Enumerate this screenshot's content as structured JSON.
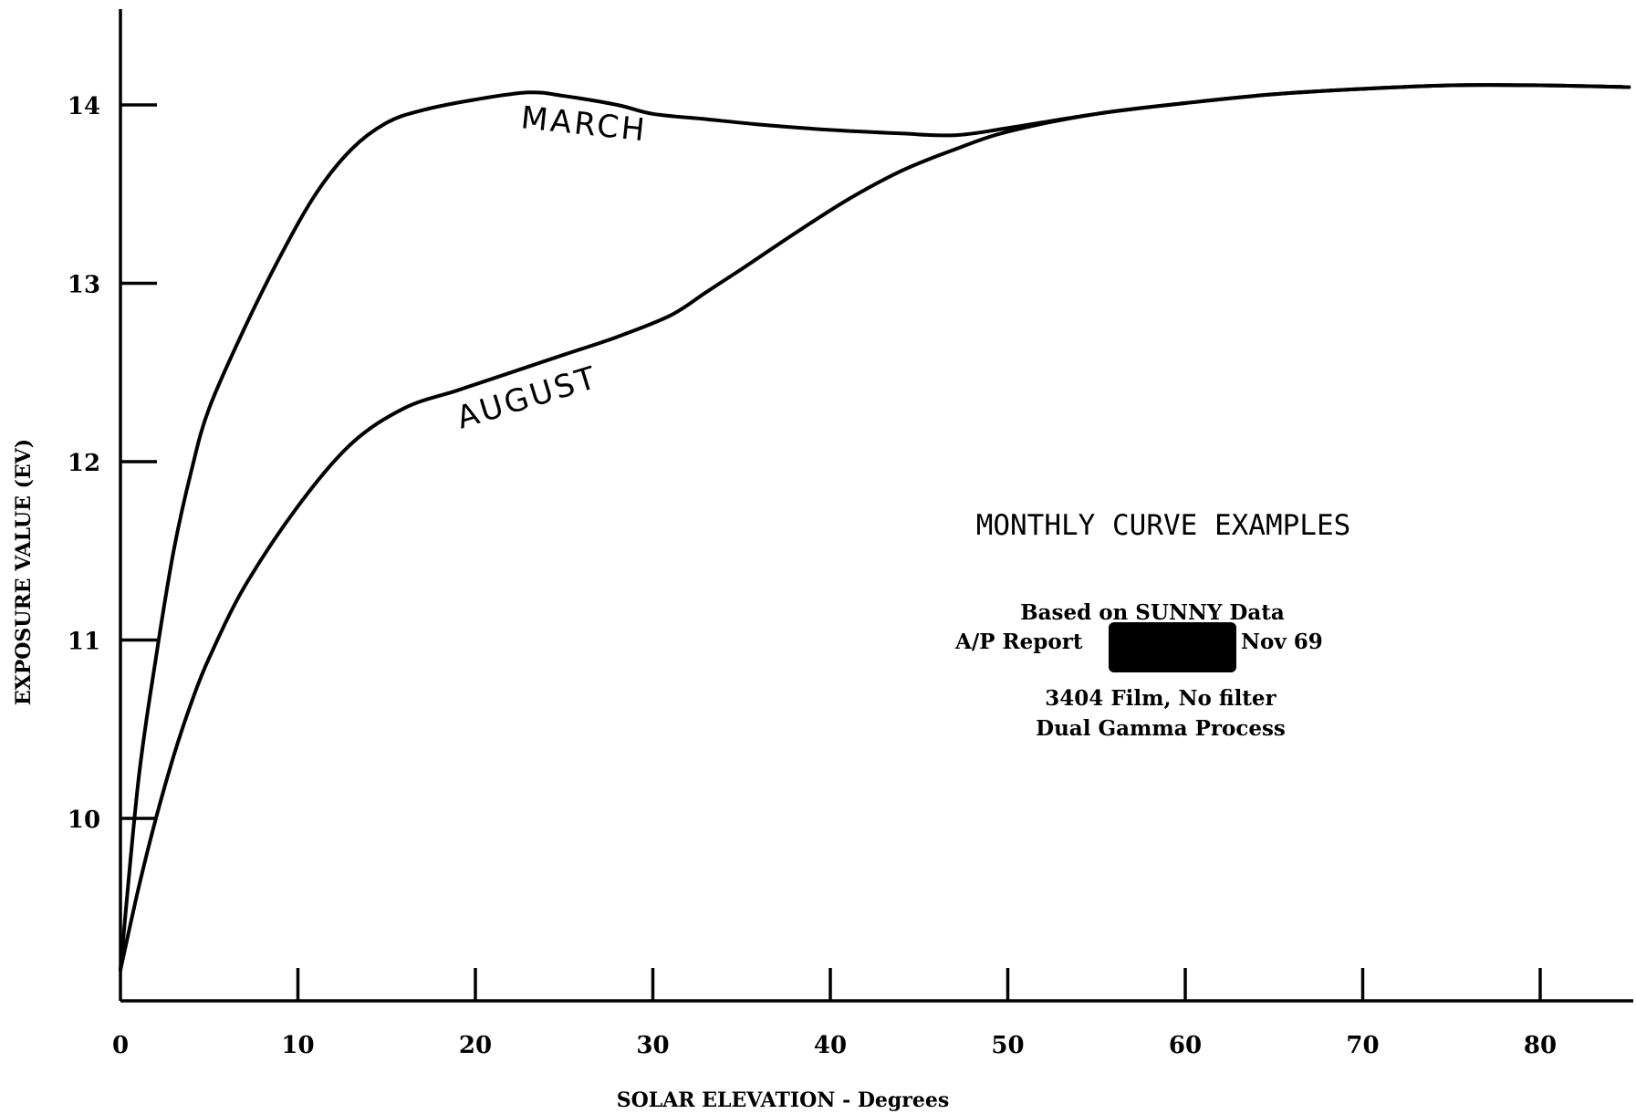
{
  "chart_data": {
    "type": "line",
    "title": "MONTHLY CURVE EXAMPLES",
    "xlabel": "SOLAR ELEVATION - Degrees",
    "ylabel": "EXPOSURE VALUE (EV)",
    "xlim": [
      0,
      85
    ],
    "ylim": [
      9,
      14.5
    ],
    "x_ticks": [
      0,
      10,
      20,
      30,
      40,
      50,
      60,
      70,
      80
    ],
    "y_ticks": [
      10,
      11,
      12,
      13,
      14
    ],
    "grid": false,
    "series": [
      {
        "name": "MARCH",
        "x": [
          0,
          1,
          2,
          3,
          4,
          5,
          7,
          9,
          11,
          13,
          15,
          17,
          20,
          23,
          25,
          28,
          30,
          33,
          36,
          40,
          44,
          47,
          50,
          55,
          60,
          65,
          70,
          75,
          80,
          85
        ],
        "y": [
          9.15,
          10.2,
          10.9,
          11.5,
          11.95,
          12.3,
          12.75,
          13.15,
          13.5,
          13.75,
          13.9,
          13.97,
          14.03,
          14.07,
          14.05,
          14.0,
          13.95,
          13.92,
          13.89,
          13.86,
          13.84,
          13.83,
          13.87,
          13.95,
          14.01,
          14.06,
          14.09,
          14.11,
          14.11,
          14.1
        ]
      },
      {
        "name": "AUGUST",
        "x": [
          0,
          1,
          2,
          3,
          4,
          5,
          7,
          10,
          13,
          16,
          19,
          22,
          25,
          28,
          31,
          33,
          35,
          38,
          41,
          44,
          47,
          50,
          55,
          60,
          65,
          70,
          75,
          80,
          85
        ],
        "y": [
          9.15,
          9.6,
          10.0,
          10.35,
          10.65,
          10.9,
          11.3,
          11.75,
          12.1,
          12.3,
          12.4,
          12.5,
          12.6,
          12.7,
          12.82,
          12.95,
          13.08,
          13.28,
          13.47,
          13.63,
          13.75,
          13.85,
          13.95,
          14.01,
          14.06,
          14.09,
          14.11,
          14.11,
          14.1
        ]
      }
    ],
    "annotations": [
      "Based on SUNNY Data",
      "A/P Report",
      "Nov 69",
      "3404 Film, No filter",
      "Dual Gamma Process"
    ]
  }
}
